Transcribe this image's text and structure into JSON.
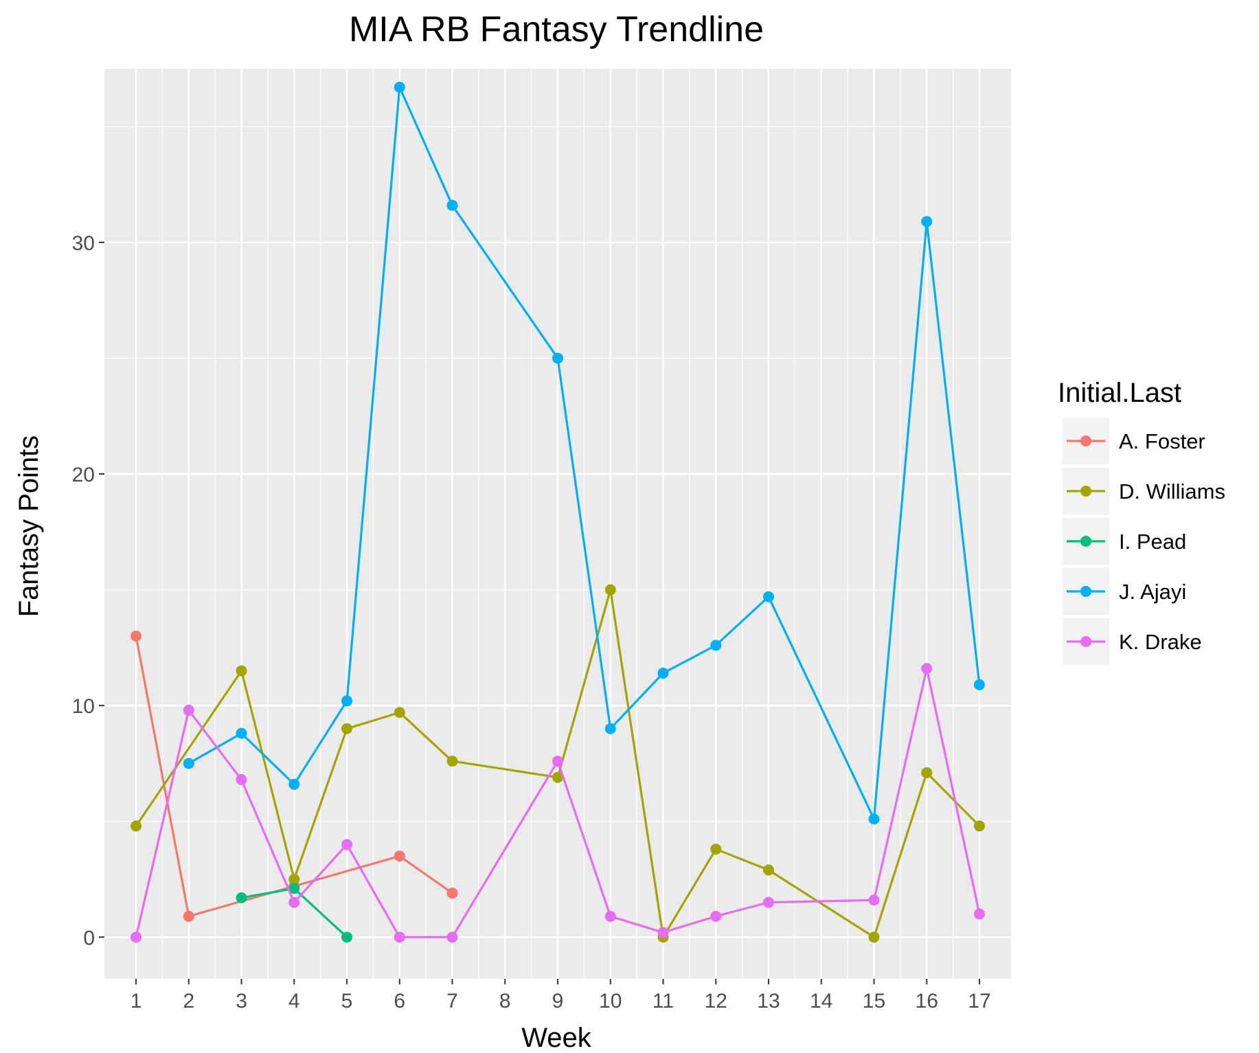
{
  "chart_data": {
    "type": "line",
    "title": "MIA RB Fantasy Trendline",
    "xlabel": "Week",
    "ylabel": "Fantasy Points",
    "x": [
      "1",
      "2",
      "3",
      "4",
      "5",
      "6",
      "7",
      "8",
      "9",
      "10",
      "11",
      "12",
      "13",
      "14",
      "15",
      "16",
      "17"
    ],
    "ylim": [
      -1.8,
      37.5
    ],
    "yticks": [
      "0",
      "10",
      "20",
      "30"
    ],
    "grid": true,
    "legend": {
      "title": "Initial.Last",
      "position": "right"
    },
    "series": [
      {
        "name": "A. Foster",
        "color": "#F8766D",
        "points": [
          [
            "1",
            13.0
          ],
          [
            "2",
            0.9
          ],
          [
            "4",
            2.2
          ],
          [
            "6",
            3.5
          ],
          [
            "7",
            1.9
          ]
        ]
      },
      {
        "name": "D. Williams",
        "color": "#A3A500",
        "points": [
          [
            "1",
            4.8
          ],
          [
            "3",
            11.5
          ],
          [
            "4",
            2.5
          ],
          [
            "5",
            9.0
          ],
          [
            "6",
            9.7
          ],
          [
            "7",
            7.6
          ],
          [
            "9",
            6.9
          ],
          [
            "10",
            15.0
          ],
          [
            "11",
            0.0
          ],
          [
            "12",
            3.8
          ],
          [
            "13",
            2.9
          ],
          [
            "15",
            0.0
          ],
          [
            "16",
            7.1
          ],
          [
            "17",
            4.8
          ]
        ]
      },
      {
        "name": "I. Pead",
        "color": "#00BF7D",
        "points": [
          [
            "3",
            1.7
          ],
          [
            "4",
            2.1
          ],
          [
            "5",
            0.0
          ]
        ]
      },
      {
        "name": "J. Ajayi",
        "color": "#00B0F6",
        "points": [
          [
            "2",
            7.5
          ],
          [
            "3",
            8.8
          ],
          [
            "4",
            6.6
          ],
          [
            "5",
            10.2
          ],
          [
            "6",
            36.7
          ],
          [
            "7",
            31.6
          ],
          [
            "9",
            25.0
          ],
          [
            "10",
            9.0
          ],
          [
            "11",
            11.4
          ],
          [
            "12",
            12.6
          ],
          [
            "13",
            14.7
          ],
          [
            "15",
            5.1
          ],
          [
            "16",
            30.9
          ],
          [
            "17",
            10.9
          ]
        ]
      },
      {
        "name": "K. Drake",
        "color": "#E76BF3",
        "points": [
          [
            "1",
            0.0
          ],
          [
            "2",
            9.8
          ],
          [
            "3",
            6.8
          ],
          [
            "4",
            1.5
          ],
          [
            "5",
            4.0
          ],
          [
            "6",
            0.0
          ],
          [
            "7",
            0.0
          ],
          [
            "9",
            7.6
          ],
          [
            "10",
            0.9
          ],
          [
            "11",
            0.2
          ],
          [
            "12",
            0.9
          ],
          [
            "13",
            1.5
          ],
          [
            "15",
            1.6
          ],
          [
            "16",
            11.6
          ],
          [
            "17",
            1.0
          ]
        ]
      }
    ]
  }
}
